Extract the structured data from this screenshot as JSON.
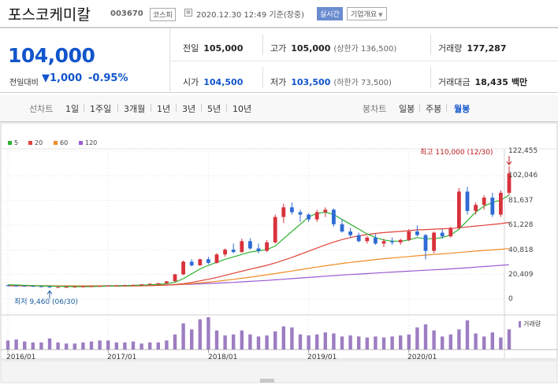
{
  "header": {
    "title": "포스코케미칼",
    "code": "003670",
    "market": "코스피",
    "datetime": "2020.12.30 12:49 기준(장중)",
    "realtime": "실시간",
    "company_info": "기업개요"
  },
  "quote": {
    "price": "104,000",
    "change_label": "전일대비",
    "change_arrow": "▼",
    "change": "1,000",
    "change_pct": "-0.95%",
    "prev": {
      "label": "전일",
      "value": "105,000"
    },
    "high": {
      "label": "고가",
      "value": "105,000",
      "sub": "(상한가 136,500)"
    },
    "volume": {
      "label": "거래량",
      "value": "177,287"
    },
    "open": {
      "label": "시가",
      "value": "104,500"
    },
    "low": {
      "label": "저가",
      "value": "103,500",
      "sub": "(하한가 73,500)"
    },
    "amount": {
      "label": "거래대금",
      "value": "18,435",
      "unit": "백만"
    }
  },
  "tabs": {
    "line_label": "선차트",
    "periods": [
      "1일",
      "1주일",
      "3개월",
      "1년",
      "3년",
      "5년",
      "10년"
    ],
    "candle_label": "봉차트",
    "candles": [
      "일봉",
      "주봉",
      "월봉"
    ],
    "active_candle": "월봉"
  },
  "colors": {
    "up": "#d8323c",
    "down": "#2e6bd6",
    "ma5": "#2fb12f",
    "ma20": "#e0433a",
    "ma60": "#ef8c26",
    "ma120": "#9a5ad0",
    "volume": "#9d7dc2",
    "accent": "#1155cc"
  },
  "chart_data": {
    "type": "candlestick",
    "title": "포스코케미칼 월봉",
    "legend": [
      "5",
      "20",
      "60",
      "120"
    ],
    "y_ticks": [
      "122,455",
      "102,046",
      "81,637",
      "61,228",
      "40,818",
      "20,409",
      "0"
    ],
    "y_tick_values": [
      122455,
      102046,
      81637,
      61228,
      40818,
      20409,
      0
    ],
    "x_ticks": [
      "2016/01",
      "2017/01",
      "2018/01",
      "2019/01",
      "2020/01"
    ],
    "x_tick_month_index": [
      0,
      12,
      24,
      36,
      48
    ],
    "high_annotation": "최고 110,000 (12/30)",
    "low_annotation": "최저 9,460 (06/30)",
    "volume_label": "거래량",
    "candles": [
      [
        11500,
        12000,
        11000,
        11200
      ],
      [
        11200,
        11500,
        10800,
        11000
      ],
      [
        11000,
        11400,
        10600,
        10900
      ],
      [
        10900,
        11200,
        10400,
        10600
      ],
      [
        10600,
        10900,
        10200,
        10400
      ],
      [
        10400,
        10500,
        9460,
        9700
      ],
      [
        9700,
        10200,
        9600,
        10000
      ],
      [
        10000,
        10400,
        9800,
        10100
      ],
      [
        10100,
        10500,
        9900,
        10300
      ],
      [
        10300,
        10700,
        10100,
        10500
      ],
      [
        10500,
        10900,
        10300,
        10700
      ],
      [
        10700,
        11200,
        10500,
        11000
      ],
      [
        11000,
        11400,
        10800,
        11200
      ],
      [
        11200,
        11600,
        11000,
        11400
      ],
      [
        11400,
        11800,
        11200,
        11600
      ],
      [
        11600,
        12000,
        11300,
        11800
      ],
      [
        11800,
        12500,
        11600,
        12300
      ],
      [
        12300,
        13000,
        12100,
        12800
      ],
      [
        12800,
        13500,
        12500,
        13200
      ],
      [
        13200,
        15000,
        12800,
        14800
      ],
      [
        14800,
        21000,
        14500,
        20500
      ],
      [
        20500,
        32000,
        20000,
        31000
      ],
      [
        31000,
        33000,
        27000,
        28000
      ],
      [
        28000,
        33500,
        27500,
        33000
      ],
      [
        33000,
        35000,
        29000,
        30000
      ],
      [
        30000,
        38000,
        29500,
        37000
      ],
      [
        37000,
        42000,
        35000,
        41000
      ],
      [
        41000,
        46000,
        38000,
        39000
      ],
      [
        39000,
        50000,
        38500,
        48000
      ],
      [
        48000,
        50500,
        41000,
        42000
      ],
      [
        42000,
        46000,
        38000,
        40000
      ],
      [
        40000,
        49000,
        39000,
        47000
      ],
      [
        47000,
        70000,
        46000,
        68000
      ],
      [
        68000,
        79000,
        63000,
        76000
      ],
      [
        76000,
        80000,
        70000,
        72000
      ],
      [
        72000,
        74000,
        64000,
        70000
      ],
      [
        70000,
        71000,
        64000,
        66000
      ],
      [
        66000,
        74000,
        64000,
        72000
      ],
      [
        72000,
        76000,
        68000,
        74000
      ],
      [
        74000,
        75000,
        60000,
        62000
      ],
      [
        62000,
        66000,
        55000,
        56000
      ],
      [
        56000,
        59000,
        51000,
        53000
      ],
      [
        53000,
        55000,
        47000,
        48000
      ],
      [
        48000,
        52000,
        46000,
        51000
      ],
      [
        51000,
        54000,
        45000,
        46000
      ],
      [
        46000,
        50000,
        43000,
        48000
      ],
      [
        48000,
        51000,
        45000,
        47000
      ],
      [
        47000,
        50000,
        45000,
        49000
      ],
      [
        49000,
        58000,
        48000,
        56000
      ],
      [
        56000,
        61000,
        52000,
        53000
      ],
      [
        53000,
        54000,
        33000,
        40000
      ],
      [
        40000,
        56000,
        38000,
        55000
      ],
      [
        55000,
        58000,
        50000,
        52000
      ],
      [
        52000,
        60000,
        51000,
        59000
      ],
      [
        59000,
        92000,
        58000,
        89000
      ],
      [
        89000,
        93000,
        70000,
        73000
      ],
      [
        73000,
        80000,
        70000,
        78000
      ],
      [
        78000,
        86000,
        74000,
        84000
      ],
      [
        84000,
        88000,
        68000,
        70000
      ],
      [
        70000,
        90000,
        68000,
        88000
      ],
      [
        88000,
        110000,
        86000,
        104000
      ]
    ],
    "volume": [
      18,
      20,
      16,
      14,
      14,
      22,
      14,
      12,
      12,
      14,
      16,
      18,
      18,
      14,
      14,
      16,
      12,
      14,
      14,
      18,
      30,
      52,
      40,
      60,
      64,
      38,
      28,
      30,
      38,
      30,
      26,
      28,
      36,
      46,
      44,
      30,
      28,
      30,
      34,
      32,
      26,
      28,
      26,
      24,
      26,
      24,
      26,
      28,
      30,
      44,
      50,
      38,
      26,
      30,
      40,
      58,
      32,
      26,
      34,
      24,
      40
    ],
    "ma5": [
      11900,
      11700,
      11500,
      11300,
      11000,
      10800,
      10600,
      10500,
      10400,
      10300,
      10400,
      10600,
      10800,
      11000,
      11200,
      11400,
      11600,
      11900,
      12300,
      12800,
      14000,
      17000,
      21000,
      25000,
      28000,
      30500,
      33000,
      35000,
      37000,
      39000,
      40000,
      41000,
      44000,
      50000,
      56000,
      62000,
      68000,
      71000,
      72000,
      70000,
      66000,
      62000,
      58000,
      54000,
      51000,
      49000,
      48000,
      48000,
      49000,
      51000,
      50000,
      50000,
      51000,
      53000,
      58000,
      65000,
      72000,
      77000,
      80000,
      82000,
      86000
    ],
    "ma20": [
      11500,
      11400,
      11300,
      11200,
      11100,
      11000,
      10900,
      10800,
      10700,
      10700,
      10700,
      10700,
      10800,
      10800,
      10900,
      11000,
      11100,
      11200,
      11400,
      11600,
      12100,
      12800,
      13900,
      15200,
      16500,
      18000,
      19700,
      21400,
      23100,
      24800,
      26400,
      28000,
      30000,
      32200,
      34600,
      37100,
      39700,
      42300,
      44900,
      47300,
      49300,
      51000,
      52400,
      53500,
      54400,
      55100,
      55600,
      56100,
      56700,
      57300,
      57600,
      57900,
      58200,
      58500,
      59100,
      59800,
      60500,
      61100,
      61800,
      62500,
      63500
    ],
    "ma60": [
      11200,
      11200,
      11200,
      11100,
      11100,
      11100,
      11000,
      11000,
      11000,
      11000,
      11000,
      11000,
      11000,
      11100,
      11100,
      11200,
      11300,
      11400,
      11500,
      11700,
      12000,
      12400,
      12900,
      13500,
      14100,
      14800,
      15600,
      16400,
      17300,
      18200,
      19200,
      20200,
      21200,
      22200,
      23300,
      24400,
      25500,
      26600,
      27600,
      28600,
      29600,
      30400,
      31200,
      32000,
      32800,
      33500,
      34100,
      34700,
      35300,
      35900,
      36500,
      37000,
      37500,
      38000,
      38600,
      39200,
      39800,
      40300,
      40800,
      41300,
      41900
    ],
    "ma120": [
      11000,
      11000,
      11000,
      11000,
      11000,
      11000,
      11000,
      11000,
      11000,
      11000,
      11100,
      11100,
      11200,
      11200,
      11300,
      11400,
      11500,
      11600,
      11700,
      11800,
      12000,
      12200,
      12400,
      12700,
      13000,
      13300,
      13600,
      13900,
      14300,
      14700,
      15100,
      15500,
      16000,
      16500,
      17000,
      17500,
      18000,
      18500,
      19000,
      19500,
      20000,
      20400,
      20800,
      21200,
      21600,
      22000,
      22400,
      22800,
      23200,
      23600,
      24000,
      24300,
      24700,
      25100,
      25500,
      26000,
      26500,
      27000,
      27500,
      28000,
      28500
    ]
  }
}
